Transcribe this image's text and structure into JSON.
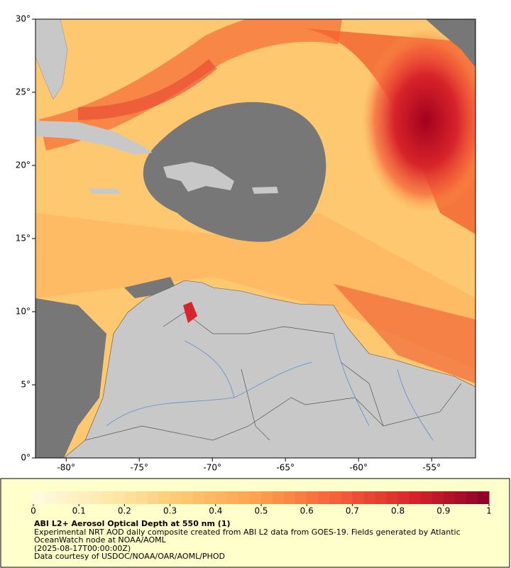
{
  "map": {
    "xlim": [
      -82.1,
      -52
    ],
    "ylim": [
      0,
      30
    ],
    "xticks": [
      {
        "value": -80,
        "label": "-80°"
      },
      {
        "value": -75,
        "label": "-75°"
      },
      {
        "value": -70,
        "label": "-70°"
      },
      {
        "value": -65,
        "label": "-65°"
      },
      {
        "value": -60,
        "label": "-60°"
      },
      {
        "value": -55,
        "label": "-55°"
      }
    ],
    "yticks": [
      {
        "value": 0,
        "label": "0°"
      },
      {
        "value": 5,
        "label": "5°"
      },
      {
        "value": 10,
        "label": "10°"
      },
      {
        "value": 15,
        "label": "15°"
      },
      {
        "value": 20,
        "label": "20°"
      },
      {
        "value": 25,
        "label": "25°"
      },
      {
        "value": 30,
        "label": "30°"
      }
    ]
  },
  "colorbar": {
    "lim": [
      0,
      1
    ],
    "ticks": [
      0,
      0.1,
      0.2,
      0.3,
      0.4,
      0.5,
      0.6,
      0.7,
      0.8,
      0.9,
      1
    ],
    "colormap": [
      "#fffbe0",
      "#fee9a8",
      "#fdc770",
      "#fd9f4c",
      "#f4603a",
      "#d8242a",
      "#8a0026"
    ]
  },
  "caption": {
    "title": "ABI L2+ Aerosol Optical Depth at 550 nm (1)",
    "description": "Experimental NRT AOD daily composite created from ABI L2 data from GOES-19. Fields generated by Atlantic OceanWatch node at NOAA/AOML",
    "date": "(2025-08-17T00:00:00Z)",
    "credit": "Data courtesy of USDOC/NOAA/OAR/AOML/PHOD"
  }
}
